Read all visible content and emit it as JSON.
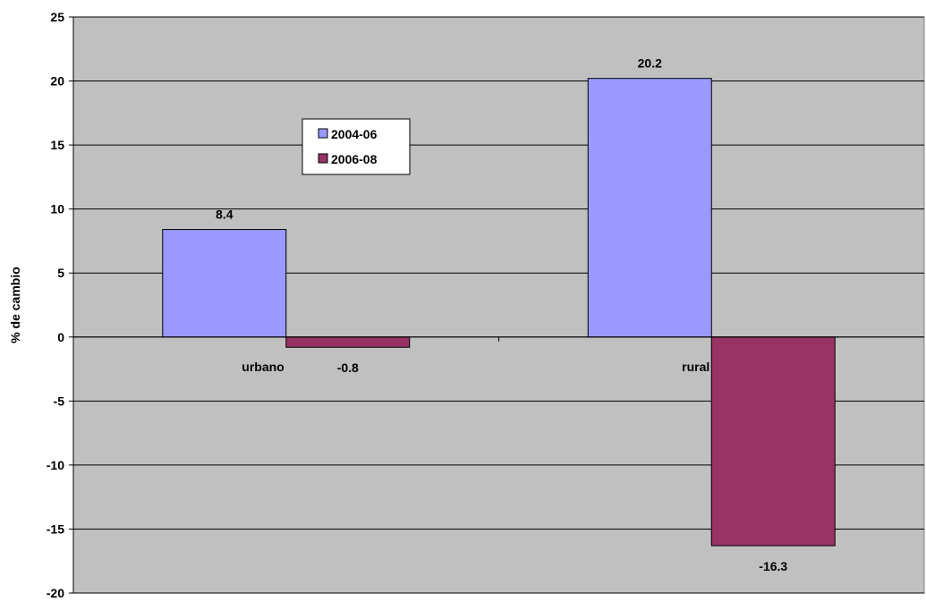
{
  "chart_data": {
    "type": "bar",
    "title": "",
    "xlabel": "",
    "ylabel": "% de cambio",
    "categories": [
      "urbano",
      "rural"
    ],
    "series": [
      {
        "name": "2004-06",
        "values": [
          8.4,
          20.2
        ],
        "labels": [
          "8.4",
          "20.2"
        ],
        "color": "#9999ff"
      },
      {
        "name": "2006-08",
        "values": [
          -0.8,
          -16.3
        ],
        "labels": [
          "-0.8",
          "-16.3"
        ],
        "color": "#993366"
      }
    ],
    "ylim": [
      -20,
      25
    ],
    "yticks": [
      25,
      20,
      15,
      10,
      5,
      0,
      -5,
      -10,
      -15,
      -20
    ],
    "ytick_labels": [
      "25",
      "20",
      "15",
      "10",
      "5",
      "0",
      "-5",
      "-10",
      "-15",
      "-20"
    ],
    "grid": true,
    "legend_position": "upper-left-inside",
    "plot_background": "#c0c0c0"
  }
}
